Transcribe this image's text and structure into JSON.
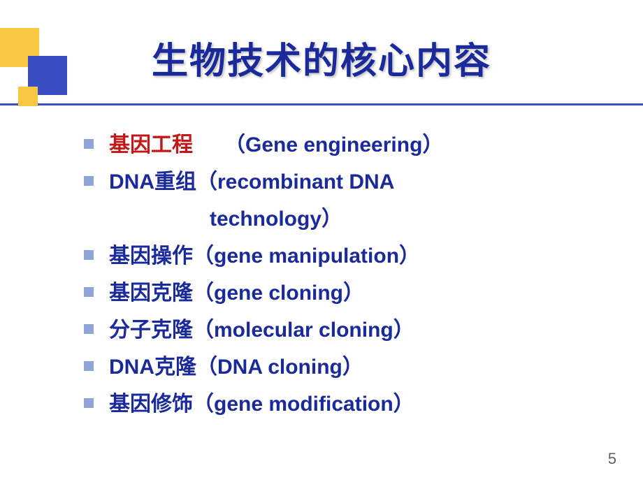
{
  "title": "生物技术的核心内容",
  "title_color": "#1a2a9a",
  "highlight_color": "#c41818",
  "text_color": "#1a2a9a",
  "bullet_color": "#8fa5d8",
  "decoration_yellow": "#f8c842",
  "decoration_blue": "#3a4ec4",
  "background_color": "#ffffff",
  "title_fontsize": 52,
  "body_fontsize": 30,
  "items": [
    {
      "zh": "基因工程",
      "en": "（Gene engineering）",
      "highlight": true,
      "spacer": "　　"
    },
    {
      "zh": "DNA重组",
      "en": "（recombinant DNA",
      "highlight": false,
      "continuation": "technology）"
    },
    {
      "zh": "基因操作",
      "en": "（gene manipulation）",
      "highlight": false
    },
    {
      "zh": "基因克隆",
      "en": "（gene cloning）",
      "highlight": false
    },
    {
      "zh": "分子克隆",
      "en": "（molecular cloning）",
      "highlight": false
    },
    {
      "zh": "DNA克隆",
      "en": "（DNA cloning）",
      "highlight": false
    },
    {
      "zh": "基因修饰",
      "en": "（gene modification）",
      "highlight": false
    }
  ],
  "page_number": "5"
}
